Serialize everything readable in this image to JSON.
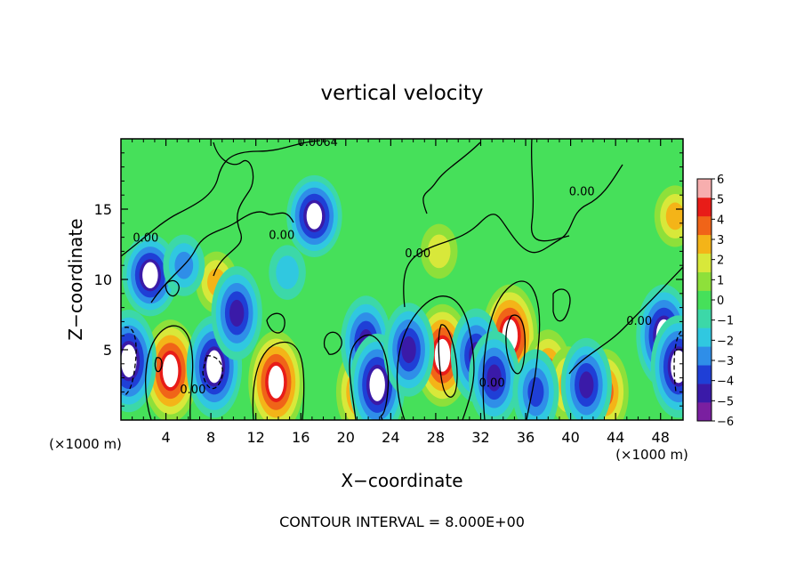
{
  "figure": {
    "title": "vertical velocity",
    "footer": "CONTOUR INTERVAL = 8.000E+00"
  },
  "chart_data": {
    "type": "heatmap",
    "title": "vertical velocity",
    "xlabel": "X−coordinate",
    "ylabel": "Z−coordinate",
    "x_unit_label": "(×1000 m)",
    "y_unit_label": "(×1000 m)",
    "xlim": [
      0,
      50
    ],
    "ylim": [
      0,
      20
    ],
    "x_ticks": [
      4,
      8,
      12,
      16,
      20,
      24,
      28,
      32,
      36,
      40,
      44,
      48
    ],
    "y_ticks": [
      5,
      10,
      15
    ],
    "colorbar": {
      "range": [
        -6,
        6
      ],
      "ticks": [
        "6",
        "5",
        "4",
        "3",
        "2",
        "1",
        "0",
        "−1",
        "−2",
        "−3",
        "−4",
        "−5",
        "−6"
      ],
      "colors": [
        "#7a1fa0",
        "#3a1aa8",
        "#1f3fd6",
        "#2f8ee8",
        "#30c8e0",
        "#3cd8a8",
        "#46e05a",
        "#8ee03a",
        "#d8e83a",
        "#f4b418",
        "#f06418",
        "#e81c18",
        "#f7aeae"
      ]
    },
    "contour_labels": [
      {
        "text": "0.00",
        "x": 2.2,
        "y": 13.0
      },
      {
        "text": "0.00",
        "x": 14.3,
        "y": 13.2
      },
      {
        "text": "0.00",
        "x": 26.4,
        "y": 11.9
      },
      {
        "text": "0.00",
        "x": 41.0,
        "y": 16.3
      },
      {
        "text": "0.00",
        "x": 46.1,
        "y": 7.1
      },
      {
        "text": "0.00",
        "x": 6.4,
        "y": 2.2
      },
      {
        "text": "0.00",
        "x": 33.0,
        "y": 2.7
      },
      {
        "text": "0.0064",
        "x": 17.5,
        "y": 19.8
      }
    ],
    "features": [
      {
        "kind": "updraft",
        "x": 4.4,
        "y": 3.5,
        "peak": 6
      },
      {
        "kind": "updraft",
        "x": 13.8,
        "y": 2.7,
        "peak": 6
      },
      {
        "kind": "updraft",
        "x": 21.2,
        "y": 2.0,
        "peak": 4
      },
      {
        "kind": "updraft",
        "x": 28.6,
        "y": 4.6,
        "peak": 6
      },
      {
        "kind": "updraft",
        "x": 34.6,
        "y": 6.0,
        "peak": 6
      },
      {
        "kind": "updraft",
        "x": 38.0,
        "y": 3.4,
        "peak": 4
      },
      {
        "kind": "updraft",
        "x": 39.8,
        "y": 2.5,
        "peak": 3
      },
      {
        "kind": "updraft",
        "x": 43.1,
        "y": 2.0,
        "peak": 4
      },
      {
        "kind": "updraft",
        "x": 49.3,
        "y": 14.5,
        "peak": 3
      },
      {
        "kind": "updraft",
        "x": 28.3,
        "y": 12.0,
        "peak": 2
      },
      {
        "kind": "updraft",
        "x": 8.5,
        "y": 9.8,
        "peak": 3
      },
      {
        "kind": "downdraft",
        "x": 0.7,
        "y": 4.2,
        "peak": -6
      },
      {
        "kind": "downdraft",
        "x": 8.3,
        "y": 3.8,
        "peak": -6
      },
      {
        "kind": "downdraft",
        "x": 2.6,
        "y": 10.3,
        "peak": -6
      },
      {
        "kind": "downdraft",
        "x": 17.2,
        "y": 14.5,
        "peak": -6
      },
      {
        "kind": "downdraft",
        "x": 10.3,
        "y": 7.6,
        "peak": -5
      },
      {
        "kind": "downdraft",
        "x": 21.8,
        "y": 5.5,
        "peak": -5
      },
      {
        "kind": "downdraft",
        "x": 22.8,
        "y": 2.5,
        "peak": -6
      },
      {
        "kind": "downdraft",
        "x": 25.6,
        "y": 5.0,
        "peak": -5
      },
      {
        "kind": "downdraft",
        "x": 31.6,
        "y": 4.6,
        "peak": -5
      },
      {
        "kind": "downdraft",
        "x": 33.2,
        "y": 3.0,
        "peak": -5
      },
      {
        "kind": "downdraft",
        "x": 36.9,
        "y": 2.0,
        "peak": -4
      },
      {
        "kind": "downdraft",
        "x": 41.4,
        "y": 2.5,
        "peak": -5
      },
      {
        "kind": "downdraft",
        "x": 48.3,
        "y": 6.0,
        "peak": -6
      },
      {
        "kind": "downdraft",
        "x": 49.6,
        "y": 3.8,
        "peak": -6
      },
      {
        "kind": "downdraft",
        "x": 5.6,
        "y": 11.0,
        "peak": -3
      },
      {
        "kind": "downdraft",
        "x": 14.8,
        "y": 10.5,
        "peak": -2
      }
    ]
  }
}
